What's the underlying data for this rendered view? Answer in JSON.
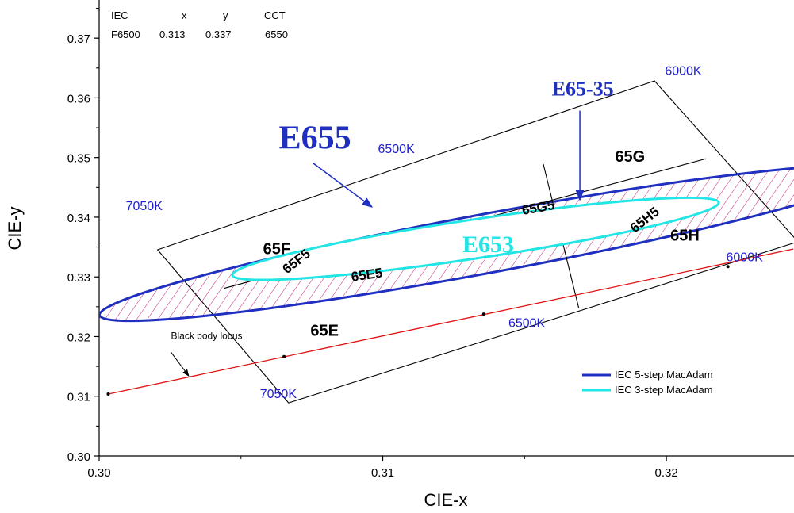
{
  "chart_data": {
    "type": "scatter",
    "xlabel": "CIE-x",
    "ylabel": "CIE-y",
    "xlim": [
      0.3,
      0.3245
    ],
    "ylim": [
      0.3,
      0.3764
    ],
    "xticks": [
      0.3,
      0.31,
      0.32
    ],
    "xtick_labels": [
      "0.30",
      "0.31",
      "0.32"
    ],
    "yticks": [
      0.3,
      0.31,
      0.32,
      0.33,
      0.34,
      0.35,
      0.36,
      0.37
    ],
    "ytick_labels": [
      "0.30",
      "0.31",
      "0.32",
      "0.33",
      "0.34",
      "0.35",
      "0.36",
      "0.37"
    ],
    "grid": false,
    "info_table": {
      "headers": [
        "IEC",
        "x",
        "y",
        "CCT"
      ],
      "row": [
        "F6500",
        "0.313",
        "0.337",
        "6550"
      ]
    },
    "colors": {
      "five_step": "#1f2fbf",
      "three_step": "#22e5e5",
      "locus": "#e01010",
      "cct_label": "#2020d0",
      "hatch": "#c0207a"
    },
    "series": [
      {
        "name": "Black body locus",
        "points": [
          [
            0.30032,
            0.31036
          ],
          [
            0.30652,
            0.31665
          ],
          [
            0.31356,
            0.32377
          ],
          [
            0.32217,
            0.33173
          ]
        ],
        "line": [
          [
            0.30032,
            0.31036
          ],
          [
            0.32448,
            0.33468
          ]
        ]
      }
    ],
    "quadrangles": [
      {
        "name": "outer",
        "corners": [
          [
            0.30206,
            0.33455
          ],
          [
            0.31958,
            0.36285
          ],
          [
            0.32464,
            0.33589
          ],
          [
            0.30668,
            0.30889
          ]
        ]
      }
    ],
    "dividers": [
      {
        "name": "6500K-line",
        "from": [
          0.31566,
          0.34892
        ],
        "to": [
          0.31691,
          0.3248
        ]
      },
      {
        "name": "mid-line",
        "from": [
          0.30441,
          0.32809
        ],
        "to": [
          0.3214,
          0.3498
        ]
      }
    ],
    "ellipses": [
      {
        "name": "IEC 5-step MacAdam",
        "center": [
          0.31372,
          0.33565
        ],
        "rx": 0.01394,
        "ry": 0.00494,
        "angle_deg": -10.5
      },
      {
        "name": "IEC 3-step MacAdam",
        "center": [
          0.31327,
          0.33638
        ],
        "rx": 0.00867,
        "ry": 0.00326,
        "angle_deg": -8.5
      }
    ],
    "cct_labels": [
      {
        "text": "6000K",
        "x": 0.31995,
        "y": 0.36384
      },
      {
        "text": "6500K",
        "x": 0.30983,
        "y": 0.35077
      },
      {
        "text": "7050K",
        "x": 0.30094,
        "y": 0.34116
      },
      {
        "text": "6000K",
        "x": 0.32211,
        "y": 0.33262
      },
      {
        "text": "6500K",
        "x": 0.31443,
        "y": 0.32156
      },
      {
        "text": "7050K",
        "x": 0.30567,
        "y": 0.30968
      }
    ],
    "region_labels": [
      {
        "text": "65G",
        "x": 0.31819,
        "y": 0.34927
      },
      {
        "text": "65F",
        "x": 0.30578,
        "y": 0.33382
      },
      {
        "text": "65H",
        "x": 0.32014,
        "y": 0.33605
      },
      {
        "text": "65E",
        "x": 0.30745,
        "y": 0.32012
      }
    ],
    "inner_labels": [
      {
        "text": "65G5",
        "x": 0.31551,
        "y": 0.34087,
        "angle": -10
      },
      {
        "text": "65H5",
        "x": 0.31933,
        "y": 0.33899,
        "angle": -38
      },
      {
        "text": "65F5",
        "x": 0.30705,
        "y": 0.33203,
        "angle": -38
      },
      {
        "text": "65E5",
        "x": 0.30946,
        "y": 0.32962,
        "angle": -8
      }
    ],
    "annotations": [
      {
        "text": "E655",
        "x": 0.30761,
        "y": 0.35146,
        "from": [
          0.30753,
          0.34911
        ],
        "to": [
          0.30962,
          0.34172
        ],
        "color": "#1f2fbf",
        "size": 42,
        "serif": true
      },
      {
        "text": "E65-35",
        "x": 0.31705,
        "y": 0.3604,
        "from": [
          0.31695,
          0.35785
        ],
        "to": [
          0.31695,
          0.34291
        ],
        "color": "#1f2fbf",
        "size": 26,
        "serif": true
      },
      {
        "text": "E653",
        "x": 0.31372,
        "y": 0.33416,
        "color": "#22e5e5",
        "size": 30,
        "serif": true
      },
      {
        "text": "Black body locus",
        "x": 0.30379,
        "y": 0.3196,
        "from": [
          0.30254,
          0.31733
        ],
        "to": [
          0.30316,
          0.31339
        ],
        "color": "#000000",
        "size": 12,
        "serif": false
      }
    ],
    "legend": {
      "position": "bottom-right",
      "entries": [
        {
          "label": "IEC 5-step MacAdam",
          "color": "#1f2fbf"
        },
        {
          "label": "IEC 3-step MacAdam",
          "color": "#22e5e5"
        }
      ]
    }
  }
}
